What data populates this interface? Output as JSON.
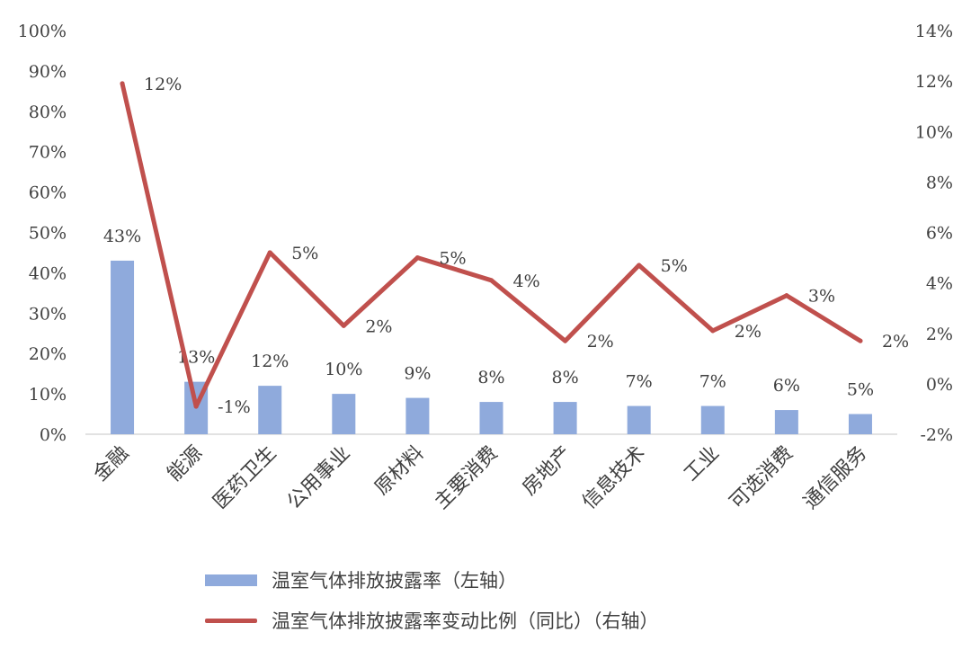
{
  "chart_data": {
    "type": "bar",
    "categories": [
      "金融",
      "能源",
      "医药卫生",
      "公用事业",
      "原材料",
      "主要消费",
      "房地产",
      "信息技术",
      "工业",
      "可选消费",
      "通信服务"
    ],
    "series": [
      {
        "name": "温室气体排放披露率（左轴）",
        "type": "bar",
        "axis": "left",
        "values": [
          43,
          13,
          12,
          10,
          9,
          8,
          8,
          7,
          7,
          6,
          5
        ],
        "labels": [
          "43%",
          "13%",
          "12%",
          "10%",
          "9%",
          "8%",
          "8%",
          "7%",
          "7%",
          "6%",
          "5%"
        ],
        "color": "#8faadc"
      },
      {
        "name": "温室气体排放披露率变动比例（同比）（右轴）",
        "type": "line",
        "axis": "right",
        "values": [
          11.9,
          -0.9,
          5.2,
          2.3,
          5.0,
          4.1,
          1.7,
          4.7,
          2.1,
          3.5,
          1.7
        ],
        "labels": [
          "12%",
          "-1%",
          "5%",
          "2%",
          "5%",
          "4%",
          "2%",
          "5%",
          "2%",
          "3%",
          "2%"
        ],
        "color": "#c0504d"
      }
    ],
    "left_axis": {
      "ylim": [
        0,
        100
      ],
      "ticks": [
        "0%",
        "10%",
        "20%",
        "30%",
        "40%",
        "50%",
        "60%",
        "70%",
        "80%",
        "90%",
        "100%"
      ]
    },
    "right_axis": {
      "ylim": [
        -2,
        14
      ],
      "ticks": [
        "-2%",
        "0%",
        "2%",
        "4%",
        "6%",
        "8%",
        "10%",
        "12%",
        "14%"
      ]
    },
    "grid": false,
    "legend_position": "bottom"
  }
}
